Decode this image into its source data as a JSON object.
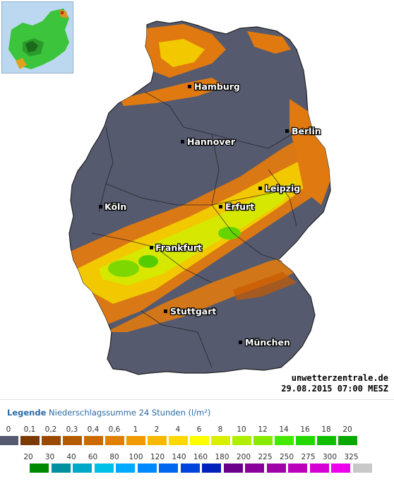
{
  "map": {
    "cities": [
      {
        "name": "Hamburg"
      },
      {
        "name": "Berlin"
      },
      {
        "name": "Hannover"
      },
      {
        "name": "Leipzig"
      },
      {
        "name": "Köln"
      },
      {
        "name": "Erfurt"
      },
      {
        "name": "Frankfurt"
      },
      {
        "name": "Stuttgart"
      },
      {
        "name": "München"
      }
    ],
    "credit_site": "unwetterzentrale.de",
    "credit_timestamp": "29.08.2015 07:00 MESZ"
  },
  "legend": {
    "title_bold": "Legende",
    "title_text": "Niederschlagssumme 24 Stunden  (l/m²)",
    "row1": {
      "labels": [
        "0",
        "0,1",
        "0,2",
        "0,3",
        "0,4",
        "0,6",
        "1",
        "2",
        "4",
        "6",
        "8",
        "10",
        "12",
        "14",
        "16",
        "18",
        "20"
      ],
      "colors": [
        "#555a6e",
        "#7a3a00",
        "#9a4a00",
        "#b45a00",
        "#cc6a00",
        "#e08000",
        "#f09a00",
        "#f8b800",
        "#ffd800",
        "#ffff00",
        "#d8f000",
        "#b0ee00",
        "#88ea00",
        "#44e800",
        "#22d800",
        "#10c000",
        "#08a800"
      ]
    },
    "row2": {
      "labels": [
        "20",
        "30",
        "40",
        "60",
        "80",
        "100",
        "120",
        "140",
        "160",
        "180",
        "200",
        "225",
        "250",
        "275",
        "300",
        "325"
      ],
      "colors": [
        "#008800",
        "#0090a0",
        "#00a8c8",
        "#00c0e8",
        "#00aaff",
        "#0088ff",
        "#0066ee",
        "#0044dd",
        "#0022bb",
        "#6a008a",
        "#880099",
        "#a000a8",
        "#bb00bb",
        "#d400d4",
        "#ee00ee",
        "#c8c8c8"
      ]
    }
  }
}
